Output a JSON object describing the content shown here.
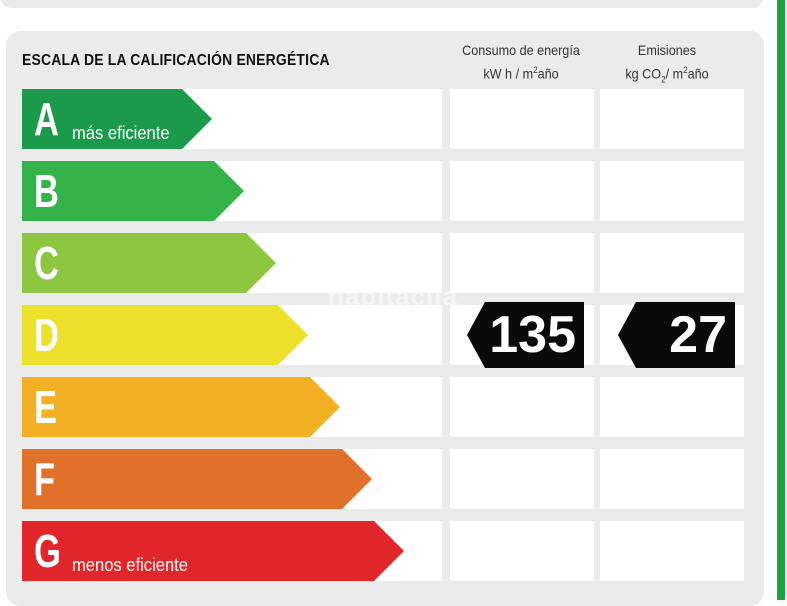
{
  "title": "ESCALA DE LA CALIFICACIÓN ENERGÉTICA",
  "columns": {
    "consumption": {
      "line1": "Consumo de energía",
      "unit_prefix": "kW h / m",
      "unit_sup": "2",
      "unit_suffix": "año"
    },
    "emissions": {
      "line1": "Emisiones",
      "unit_prefix": "kg CO",
      "unit_sub": "2",
      "unit_mid": "/ m",
      "unit_sup": "2",
      "unit_suffix": "año"
    }
  },
  "ratings": [
    {
      "letter": "A",
      "caption": "más eficiente",
      "color": "#1a9a4a"
    },
    {
      "letter": "B",
      "caption": "",
      "color": "#36b24a"
    },
    {
      "letter": "C",
      "caption": "",
      "color": "#8dc63f"
    },
    {
      "letter": "D",
      "caption": "",
      "color": "#ede12e"
    },
    {
      "letter": "E",
      "caption": "",
      "color": "#f2b125"
    },
    {
      "letter": "F",
      "caption": "",
      "color": "#e0702a"
    },
    {
      "letter": "G",
      "caption": "menos eficiente",
      "color": "#e0262a"
    }
  ],
  "result": {
    "rating": "D",
    "consumption_value": "135",
    "emissions_value": "27"
  },
  "watermark": "habitaclia",
  "colors": {
    "panel": "#ebebeb",
    "accent_rule": "#1aa33a",
    "badge": "#0a0a0a"
  }
}
